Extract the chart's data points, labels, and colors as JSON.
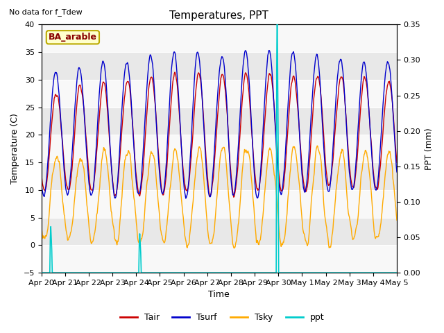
{
  "title": "Temperatures, PPT",
  "subtitle": "No data for f_Tdew",
  "station_label": "BA_arable",
  "xlabel": "Time",
  "ylabel_left": "Temperature (C)",
  "ylabel_right": "PPT (mm)",
  "ylim_left": [
    -5,
    40
  ],
  "ylim_right": [
    0.0,
    0.35
  ],
  "yticks_left": [
    -5,
    0,
    5,
    10,
    15,
    20,
    25,
    30,
    35,
    40
  ],
  "yticks_right": [
    0.0,
    0.05,
    0.1,
    0.15,
    0.2,
    0.25,
    0.3,
    0.35
  ],
  "xtick_labels": [
    "Apr 20",
    "Apr 21",
    "Apr 22",
    "Apr 23",
    "Apr 24",
    "Apr 25",
    "Apr 26",
    "Apr 27",
    "Apr 28",
    "Apr 29",
    "Apr 30",
    "May 1",
    "May 2",
    "May 3",
    "May 4",
    "May 5"
  ],
  "colors": {
    "Tair": "#cc0000",
    "Tsurf": "#0000cc",
    "Tsky": "#ffaa00",
    "ppt": "#00cccc",
    "station_box_fill": "#ffffcc",
    "station_box_edge": "#bbaa00"
  },
  "ppt_spikes": [
    {
      "day": 0.4,
      "val": 0.065
    },
    {
      "day": 4.15,
      "val": 0.055
    },
    {
      "day": 9.95,
      "val": 0.38
    }
  ],
  "n_days": 15,
  "figsize": [
    6.4,
    4.8
  ],
  "dpi": 100
}
